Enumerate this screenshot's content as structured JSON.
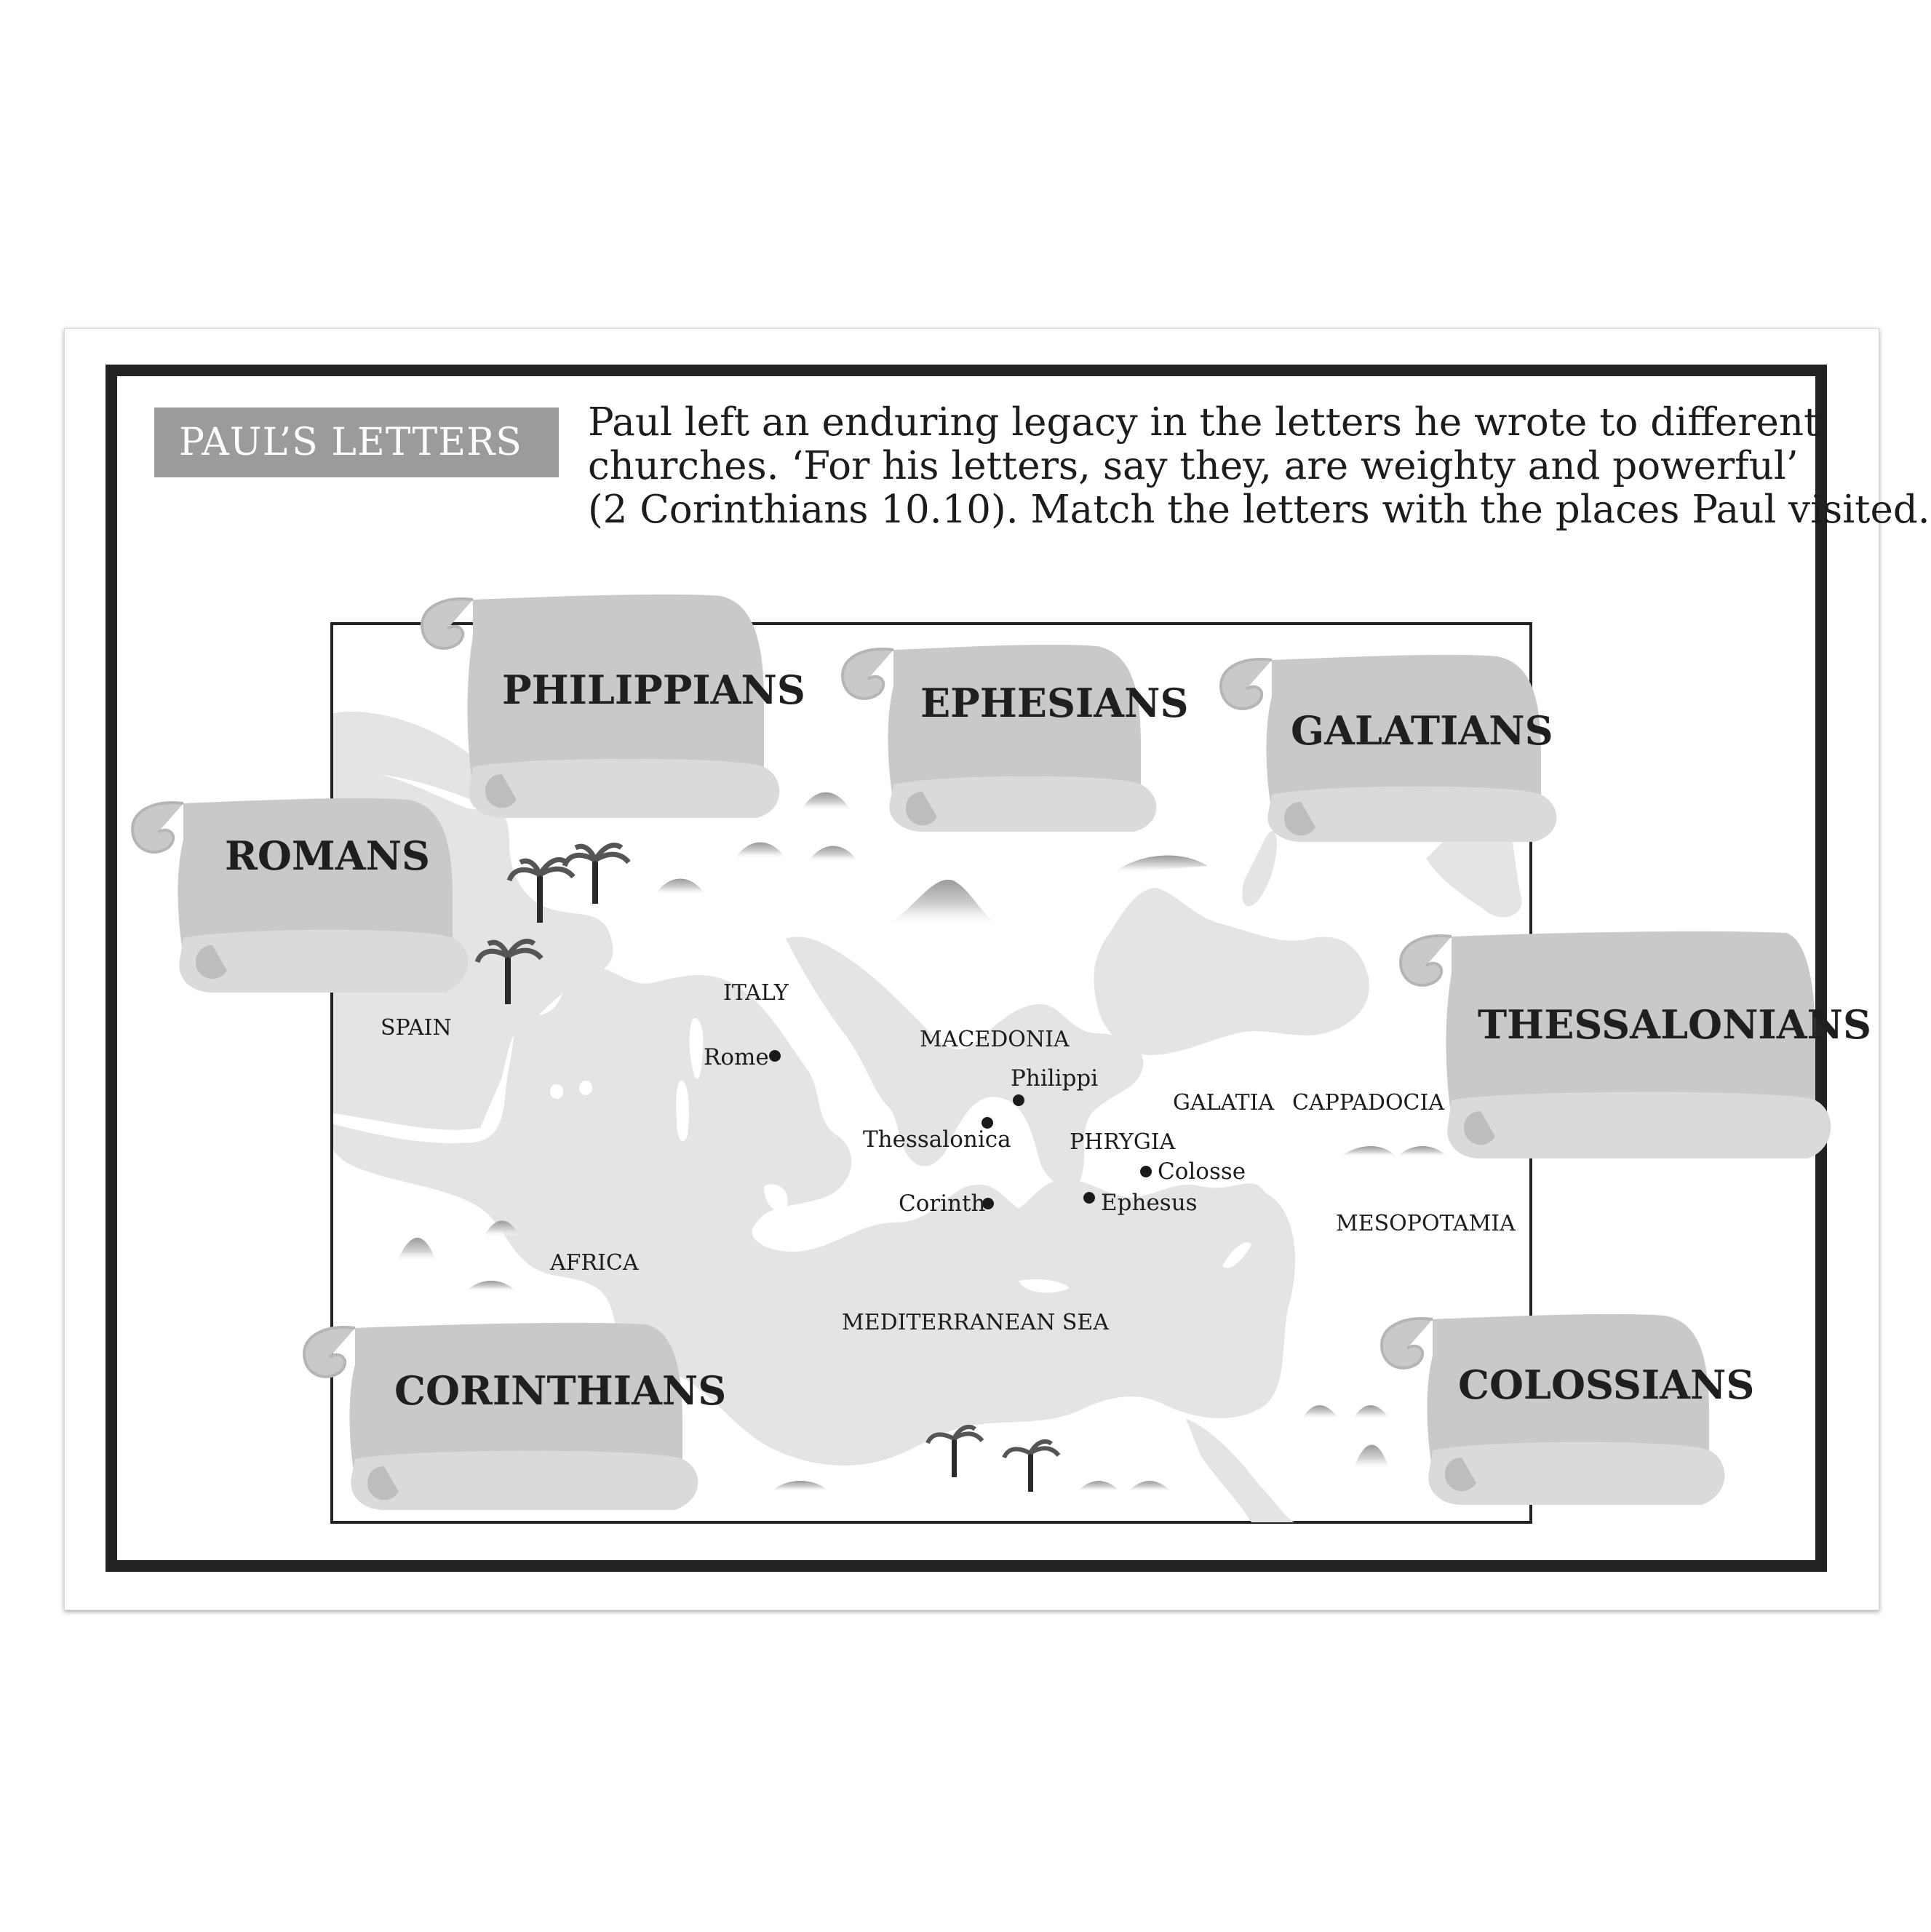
{
  "title": "PAUL’S LETTERS",
  "intro": {
    "line1": "Paul left an enduring legacy in the letters he wrote to different",
    "line2": "churches. ‘For his letters, say they, are weighty and powerful’",
    "line3": "(2 Corinthians 10.10). Match the letters with the places Paul visited."
  },
  "scrolls": {
    "philippians": "PHILIPPIANS",
    "ephesians": "EPHESIANS",
    "galatians": "GALATIANS",
    "romans": "ROMANS",
    "thessalonians": "THESSALONIANS",
    "corinthians": "CORINTHIANS",
    "colossians": "COLOSSIANS"
  },
  "regions": {
    "spain": "SPAIN",
    "italy": "ITALY",
    "macedonia": "MACEDONIA",
    "galatia": "GALATIA",
    "cappadocia": "CAPPADOCIA",
    "phrygia": "PHRYGIA",
    "mesopotamia": "MESOPOTAMIA",
    "africa": "AFRICA",
    "sea": "MEDITERRANEAN SEA"
  },
  "cities": {
    "rome": "Rome",
    "philippi": "Philippi",
    "thessalonica": "Thessalonica",
    "colosse": "Colosse",
    "corinth": "Corinth",
    "ephesus": "Ephesus"
  },
  "colors": {
    "sea": "#e4e4e4",
    "scroll": "#c9c9c9",
    "scroll_light": "#dadada",
    "frame": "#222222",
    "title_bg": "#9b9b9b"
  }
}
